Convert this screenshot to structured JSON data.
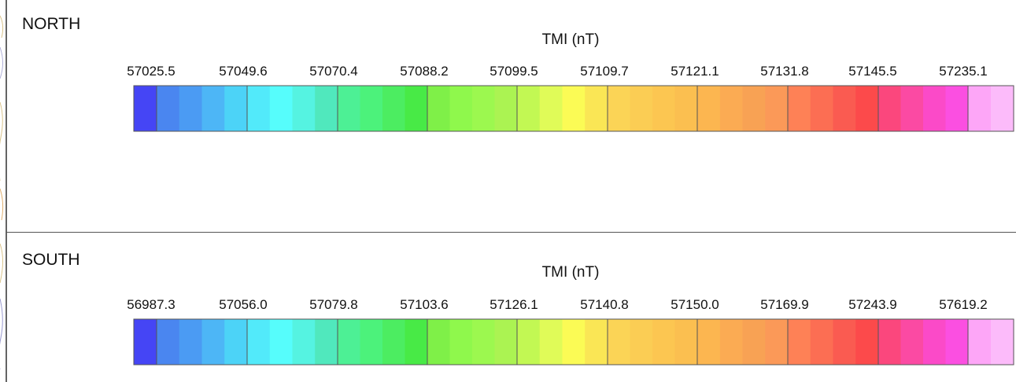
{
  "north": {
    "title": "NORTH",
    "chart_data": {
      "type": "heatmap",
      "title": "TMI (nT)",
      "tick_labels": [
        "57025.5",
        "57049.6",
        "57070.4",
        "57088.2",
        "57099.5",
        "57109.7",
        "57121.1",
        "57131.8",
        "57145.5",
        "57235.1"
      ]
    }
  },
  "south": {
    "title": "SOUTH",
    "chart_data": {
      "type": "heatmap",
      "title": "TMI (nT)",
      "tick_labels": [
        "56987.3",
        "57056.0",
        "57079.8",
        "57103.6",
        "57126.1",
        "57140.8",
        "57150.0",
        "57169.9",
        "57243.9",
        "57619.2"
      ]
    }
  },
  "colors": {
    "swatches": [
      "#4545f5",
      "#4a86f0",
      "#4b9bf3",
      "#4db6f6",
      "#4cd3f7",
      "#52eafa",
      "#56fdfc",
      "#55f3e1",
      "#50e8bd",
      "#4df095",
      "#4cf27b",
      "#4ced61",
      "#48ea46",
      "#7ff048",
      "#8ff84c",
      "#9cf84f",
      "#abf352",
      "#c2f853",
      "#e0fb58",
      "#fbfb55",
      "#fae655",
      "#fbd456",
      "#fbcd54",
      "#fcc651",
      "#fbbf50",
      "#fcb650",
      "#fbab53",
      "#f8a254",
      "#fb9958",
      "#fe8156",
      "#fc6e53",
      "#fa5b51",
      "#fc4a4b",
      "#fb477d",
      "#fb4aa3",
      "#fb4ac8",
      "#fb4fe1",
      "#fda6f7",
      "#fcbbfa"
    ],
    "frame": "#555555"
  }
}
